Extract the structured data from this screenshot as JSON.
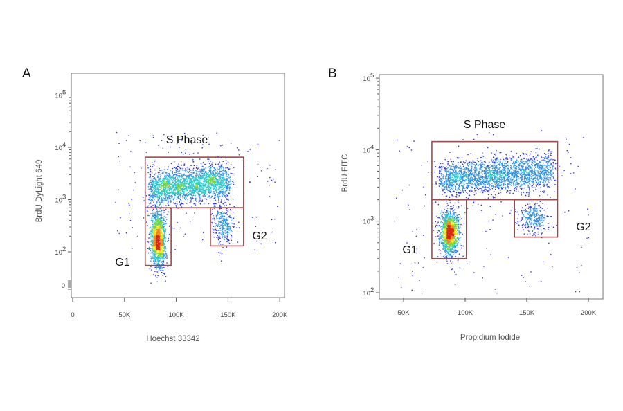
{
  "chart_data": [
    {
      "type": "scatter",
      "panel_label": "A",
      "xlabel": "Hoechst 33342",
      "ylabel": "BrdU DyLight 649",
      "x_scale": "linear",
      "y_scale": "biexponential",
      "xlim": [
        0,
        210000
      ],
      "ylim_decades": [
        1,
        5
      ],
      "x_ticks": [
        {
          "value": 0,
          "label": "0"
        },
        {
          "value": 50000,
          "label": "50K"
        },
        {
          "value": 100000,
          "label": "100K"
        },
        {
          "value": 150000,
          "label": "150K"
        },
        {
          "value": 200000,
          "label": "200K"
        }
      ],
      "y_ticks": [
        {
          "value": 0,
          "base": "0",
          "exp": ""
        },
        {
          "value": 100,
          "base": "10",
          "exp": "2"
        },
        {
          "value": 1000,
          "base": "10",
          "exp": "3"
        },
        {
          "value": 10000,
          "base": "10",
          "exp": "4"
        },
        {
          "value": 100000,
          "base": "10",
          "exp": "5"
        }
      ],
      "gates": [
        {
          "name": "S Phase",
          "x_range": [
            70000,
            165000
          ],
          "y_range": [
            700,
            6500
          ]
        },
        {
          "name": "G1",
          "x_range": [
            70000,
            95000
          ],
          "y_range": [
            55,
            700
          ]
        },
        {
          "name": "G2",
          "x_range": [
            133000,
            165000
          ],
          "y_range": [
            130,
            700
          ]
        }
      ],
      "populations": [
        {
          "name": "G1",
          "x_center": 82000,
          "x_sd": 3500,
          "y_log_center": 2.25,
          "y_log_sd": 0.28,
          "n": 1400
        },
        {
          "name": "S Phase",
          "x_range": [
            75000,
            150000
          ],
          "y_log_center": 3.3,
          "y_log_sd": 0.17,
          "n": 2400
        },
        {
          "name": "G2",
          "x_center": 145000,
          "x_sd": 5000,
          "y_log_center": 2.55,
          "y_log_sd": 0.2,
          "n": 320
        }
      ]
    },
    {
      "type": "scatter",
      "panel_label": "B",
      "xlabel": "Propidium Iodide",
      "ylabel": "BrdU FITC",
      "x_scale": "linear",
      "y_scale": "log",
      "xlim": [
        35000,
        210000
      ],
      "ylim": [
        100,
        100000
      ],
      "x_ticks": [
        {
          "value": 50000,
          "label": "50K"
        },
        {
          "value": 100000,
          "label": "100K"
        },
        {
          "value": 150000,
          "label": "150K"
        },
        {
          "value": 200000,
          "label": "200K"
        }
      ],
      "y_ticks": [
        {
          "value": 100,
          "base": "10",
          "exp": "2"
        },
        {
          "value": 1000,
          "base": "10",
          "exp": "3"
        },
        {
          "value": 10000,
          "base": "10",
          "exp": "4"
        },
        {
          "value": 100000,
          "base": "10",
          "exp": "5"
        }
      ],
      "gates": [
        {
          "name": "S Phase",
          "x_range": [
            73000,
            175000
          ],
          "y_range": [
            2000,
            13000
          ]
        },
        {
          "name": "G1",
          "x_range": [
            73000,
            101000
          ],
          "y_range": [
            300,
            2000
          ]
        },
        {
          "name": "G2",
          "x_range": [
            140000,
            175000
          ],
          "y_range": [
            600,
            2000
          ]
        }
      ],
      "populations": [
        {
          "name": "G1",
          "x_center": 87000,
          "x_sd": 3800,
          "y_log_center": 2.85,
          "y_log_sd": 0.16,
          "n": 1400
        },
        {
          "name": "S Phase",
          "x_range": [
            80000,
            170000
          ],
          "y_log_center": 3.65,
          "y_log_sd": 0.12,
          "n": 2400
        },
        {
          "name": "G2",
          "x_center": 155000,
          "x_sd": 6000,
          "y_log_center": 3.05,
          "y_log_sd": 0.1,
          "n": 320
        }
      ]
    }
  ],
  "colors": {
    "gate": "#9e4a4a",
    "density_low": "#2b35d8",
    "density_mid": "#2fc6c9",
    "density_high": "#f2e21a",
    "density_peak": "#d62a14"
  }
}
